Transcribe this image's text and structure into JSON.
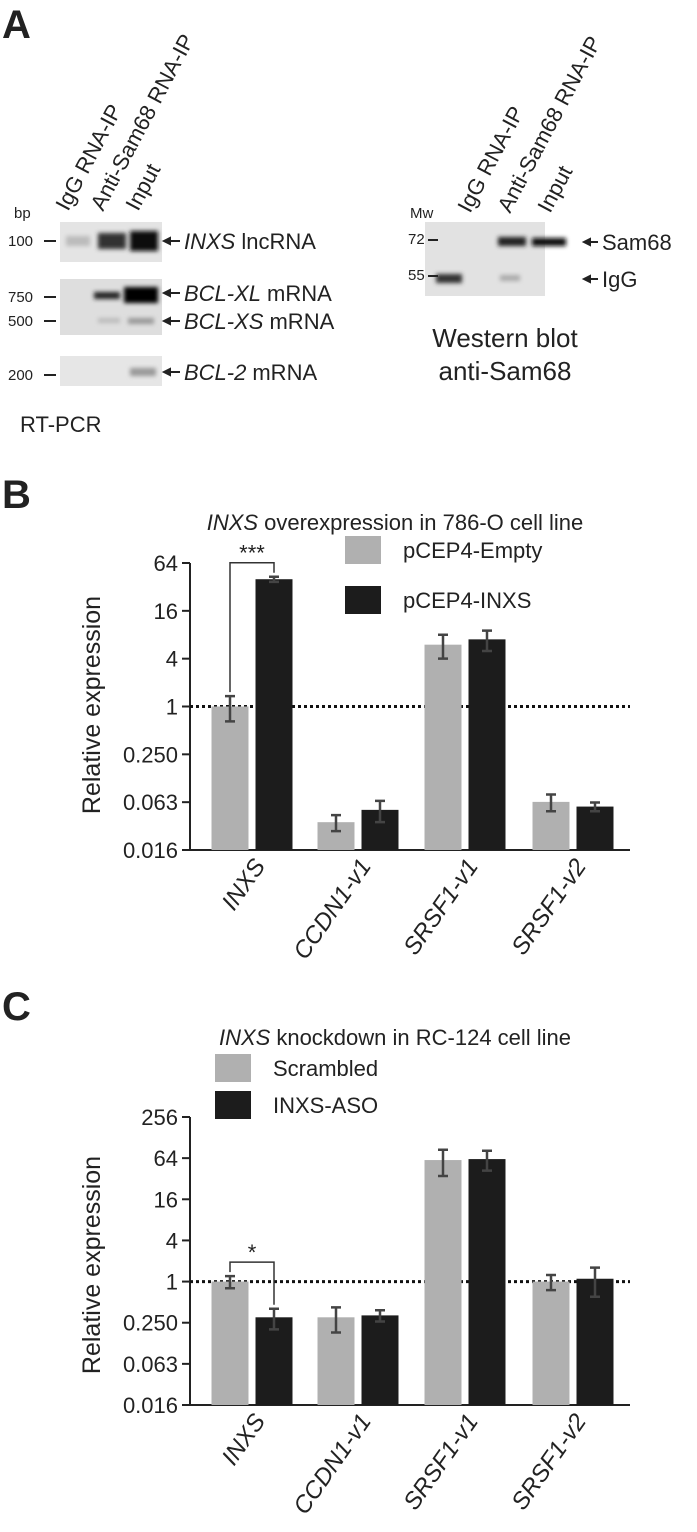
{
  "panel_a": {
    "label": "A",
    "rt_pcr": {
      "lanes": [
        "IgG RNA-IP",
        "Anti-Sam68 RNA-IP",
        "Input"
      ],
      "size_unit": "bp",
      "markers": [
        "100",
        "750",
        "500",
        "200"
      ],
      "bands": [
        {
          "gene": "INXS",
          "suffix": "lncRNA"
        },
        {
          "gene": "BCL-XL",
          "suffix": "mRNA"
        },
        {
          "gene": "BCL-XS",
          "suffix": "mRNA"
        },
        {
          "gene": "BCL-2",
          "suffix": "mRNA"
        }
      ],
      "caption": "RT-PCR"
    },
    "western": {
      "lanes": [
        "IgG RNA-IP",
        "Anti-Sam68 RNA-IP",
        "Input"
      ],
      "size_unit": "Mw",
      "markers": [
        "72",
        "55"
      ],
      "bands": [
        "Sam68",
        "IgG"
      ],
      "caption": [
        "Western blot",
        "anti-Sam68"
      ]
    }
  },
  "chart_data": [
    {
      "type": "bar",
      "panel_label": "B",
      "title_gene": "INXS",
      "title": "overexpression in 786-O cell line",
      "y_label": "Relative expression",
      "log_scale": true,
      "log_base": 2,
      "categories": [
        "INXS",
        "CCDN1-v1",
        "SRSF1-v1",
        "SRSF1-v2"
      ],
      "series": [
        {
          "name": "pCEP4-Empty",
          "color": "#b0b0b0",
          "values": [
            1,
            0.035,
            6,
            0.063
          ],
          "errors": [
            0.35,
            0.008,
            2,
            0.015
          ]
        },
        {
          "name": "pCEP4-INXS",
          "color": "#1c1c1c",
          "values": [
            40,
            0.05,
            7,
            0.055
          ],
          "errors": [
            3,
            0.015,
            2,
            0.007
          ]
        }
      ],
      "ylim": [
        0.015625,
        64
      ],
      "yticks": [
        {
          "value": 0.015625,
          "label": "0.016"
        },
        {
          "value": 0.0625,
          "label": "0.063"
        },
        {
          "value": 0.25,
          "label": "0.250"
        },
        1,
        4,
        16,
        64
      ],
      "reference_line": 1,
      "significance": {
        "category": 0,
        "label": "***"
      },
      "legend_position": "upper center"
    },
    {
      "type": "bar",
      "panel_label": "C",
      "title_gene": "INXS",
      "title": "knockdown in RC-124 cell line",
      "y_label": "Relative expression",
      "log_scale": true,
      "log_base": 2,
      "categories": [
        "INXS",
        "CCDN1-v1",
        "SRSF1-v1",
        "SRSF1-v2"
      ],
      "series": [
        {
          "name": "Scrambled",
          "color": "#b0b0b0",
          "values": [
            1,
            0.3,
            60,
            1
          ],
          "errors": [
            0.2,
            0.12,
            25,
            0.25
          ]
        },
        {
          "name": "INXS-ASO",
          "color": "#1c1c1c",
          "values": [
            0.3,
            0.32,
            62,
            1.1
          ],
          "errors": [
            0.1,
            0.06,
            20,
            0.5
          ]
        }
      ],
      "ylim": [
        0.015625,
        256
      ],
      "yticks": [
        {
          "value": 0.015625,
          "label": "0.016"
        },
        {
          "value": 0.0625,
          "label": "0.063"
        },
        {
          "value": 0.25,
          "label": "0.250"
        },
        1,
        4,
        16,
        64,
        256
      ],
      "reference_line": 1,
      "significance": {
        "category": 0,
        "label": "*"
      },
      "legend_position": "upper left"
    }
  ]
}
